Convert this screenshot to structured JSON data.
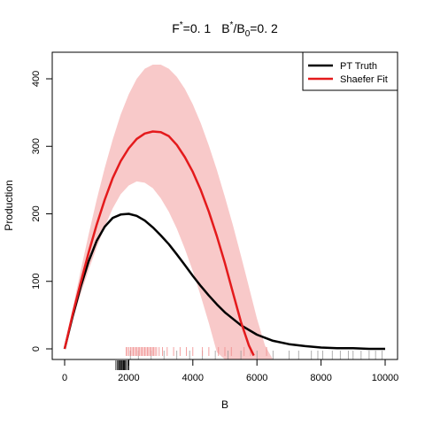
{
  "chart_data": {
    "type": "line",
    "title": {
      "f_main": "F",
      "f_sup": "*",
      "f_value": "=0. 1",
      "b_main": "B",
      "b_sup": "*",
      "b_mid": "/B",
      "b_sub": "0",
      "b_value": "=0. 2"
    },
    "xlabel": "B",
    "ylabel": "Production",
    "xlim": [
      0,
      10000
    ],
    "ylim": [
      -20,
      440
    ],
    "x_ticks": [
      0,
      2000,
      4000,
      6000,
      8000,
      10000
    ],
    "x_tick_labels": [
      "0",
      "2000",
      "4000",
      "6000",
      "8000",
      "10000"
    ],
    "y_ticks": [
      0,
      100,
      200,
      300,
      400
    ],
    "y_tick_labels": [
      "0",
      "100",
      "200",
      "300",
      "400"
    ],
    "grid": false,
    "legend_position": "top-right",
    "legend": [
      {
        "label": "PT Truth",
        "color": "#000000"
      },
      {
        "label": "Shaefer Fit",
        "color": "#e41a1c"
      }
    ],
    "series": [
      {
        "name": "PT Truth",
        "color": "#000000",
        "x": [
          0,
          250,
          500,
          750,
          1000,
          1250,
          1500,
          1750,
          2000,
          2250,
          2500,
          2750,
          3000,
          3250,
          3500,
          3750,
          4000,
          4250,
          4500,
          4750,
          5000,
          5500,
          6000,
          6500,
          7000,
          7500,
          8000,
          8500,
          9000,
          9500,
          10000
        ],
        "y": [
          0,
          48,
          92,
          130,
          160,
          181,
          194,
          199,
          200,
          197,
          190,
          180,
          168,
          155,
          140,
          124,
          108,
          93,
          79,
          66,
          54,
          35,
          21,
          12,
          7,
          4,
          2,
          1,
          1,
          0,
          0
        ]
      },
      {
        "name": "Shaefer Fit",
        "color": "#e41a1c",
        "x": [
          0,
          250,
          500,
          750,
          1000,
          1250,
          1500,
          1750,
          2000,
          2250,
          2500,
          2750,
          3000,
          3250,
          3500,
          3750,
          4000,
          4250,
          4500,
          4750,
          5000,
          5250,
          5500,
          5750,
          5900
        ],
        "y": [
          0,
          51,
          98,
          143,
          184,
          221,
          253,
          278,
          297,
          311,
          319,
          322,
          321,
          315,
          302,
          284,
          262,
          235,
          203,
          167,
          127,
          83,
          40,
          5,
          -10
        ]
      }
    ],
    "band": {
      "color": "#f8c9c9",
      "x": [
        0,
        250,
        500,
        750,
        1000,
        1250,
        1500,
        1750,
        2000,
        2250,
        2500,
        2750,
        3000,
        3250,
        3500,
        3750,
        4000,
        4250,
        4500,
        4750,
        5000,
        5250,
        5500,
        5750,
        6000,
        6250,
        6500
      ],
      "upper": [
        0,
        59,
        116,
        170,
        221,
        268,
        310,
        347,
        377,
        400,
        415,
        421,
        421,
        415,
        403,
        385,
        362,
        334,
        301,
        265,
        225,
        183,
        138,
        92,
        45,
        5,
        -20
      ],
      "lower": [
        0,
        42,
        81,
        117,
        150,
        181,
        208,
        229,
        242,
        248,
        246,
        238,
        223,
        203,
        178,
        148,
        115,
        78,
        38,
        -5,
        -20,
        -20,
        -20,
        -20,
        -20,
        -20,
        -20
      ]
    },
    "rug_black": [
      1600,
      1650,
      1680,
      1710,
      1730,
      1760,
      1780,
      1800,
      1830,
      1850,
      1870,
      1900,
      1930,
      1980,
      2000
    ],
    "rug_gray": [
      2050,
      2300,
      2700,
      3100,
      3500,
      3900,
      4300,
      4700,
      5100,
      5500,
      6000,
      6500,
      7000,
      7300,
      7700,
      7900,
      8050,
      8350,
      8600,
      8850,
      9000,
      9250,
      9500,
      9700,
      9900
    ],
    "rug_red": [
      1920,
      1960,
      2010,
      2060,
      2100,
      2140,
      2180,
      2220,
      2260,
      2300,
      2340,
      2380,
      2420,
      2460,
      2500,
      2540,
      2580,
      2620,
      2660,
      2700,
      2740,
      2780,
      2820,
      2870,
      2950,
      3050,
      3200,
      3400,
      3600,
      3800,
      4000,
      4300,
      4500,
      4800,
      5000,
      5200,
      5600,
      5800,
      6300
    ]
  }
}
